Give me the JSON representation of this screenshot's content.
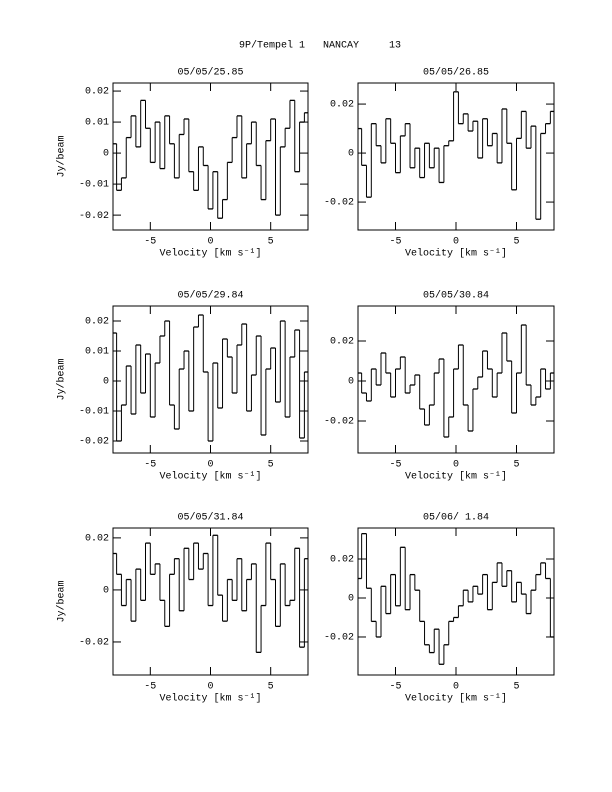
{
  "title": "9P/Tempel 1   NANCAY     13",
  "chart_data": [
    {
      "type": "step",
      "title": "05/05/25.85",
      "xlabel": "Velocity [km s⁻¹]",
      "ylabel": "Jy/beam",
      "xlim": [
        -8.1,
        8.1
      ],
      "xticks": [
        -5,
        0,
        5
      ],
      "ylim": [
        -0.0248,
        0.0226
      ],
      "yticks": [
        -0.02,
        -0.01,
        0,
        0.01,
        0.02
      ],
      "x": [
        -8,
        -7.6,
        -7.2,
        -6.8,
        -6.4,
        -6,
        -5.6,
        -5.2,
        -4.8,
        -4.4,
        -4,
        -3.6,
        -3.2,
        -2.8,
        -2.4,
        -2,
        -1.6,
        -1.2,
        -0.8,
        -0.4,
        0,
        0.4,
        0.8,
        1.2,
        1.6,
        2,
        2.4,
        2.8,
        3.2,
        3.6,
        4,
        4.4,
        4.8,
        5.2,
        5.6,
        6,
        6.4,
        6.8,
        7.2,
        7.6,
        8
      ],
      "values": [
        0.003,
        -0.012,
        -0.008,
        0.005,
        0.012,
        0.002,
        0.017,
        0.008,
        -0.003,
        0.01,
        -0.005,
        0.012,
        0.003,
        -0.008,
        0.006,
        0.011,
        -0.006,
        -0.012,
        0.002,
        -0.004,
        -0.018,
        -0.006,
        -0.021,
        -0.015,
        -0.003,
        0.005,
        0.012,
        -0.008,
        0.003,
        0.01,
        -0.004,
        -0.015,
        0.004,
        0.011,
        -0.02,
        0.002,
        0.008,
        0.017,
        -0.006,
        0.01,
        0.013
      ]
    },
    {
      "type": "step",
      "title": "05/05/26.85",
      "xlabel": "Velocity [km s⁻¹]",
      "xlim": [
        -8.1,
        8.1
      ],
      "xticks": [
        -5,
        0,
        5
      ],
      "ylim": [
        -0.0314,
        0.0286
      ],
      "yticks": [
        -0.02,
        0,
        0.02
      ],
      "x": [
        -8,
        -7.6,
        -7.2,
        -6.8,
        -6.4,
        -6,
        -5.6,
        -5.2,
        -4.8,
        -4.4,
        -4,
        -3.6,
        -3.2,
        -2.8,
        -2.4,
        -2,
        -1.6,
        -1.2,
        -0.8,
        -0.4,
        0,
        0.4,
        0.8,
        1.2,
        1.6,
        2,
        2.4,
        2.8,
        3.2,
        3.6,
        4,
        4.4,
        4.8,
        5.2,
        5.6,
        6,
        6.4,
        6.8,
        7.2,
        7.6,
        8
      ],
      "values": [
        0.01,
        -0.005,
        -0.018,
        0.012,
        0.003,
        -0.004,
        0.014,
        0.004,
        -0.008,
        0.007,
        0.012,
        -0.006,
        0.002,
        -0.01,
        0.004,
        -0.006,
        0.002,
        -0.012,
        0.003,
        0.005,
        0.025,
        0.012,
        0.016,
        0.009,
        0.013,
        -0.002,
        0.014,
        0.003,
        0.008,
        -0.004,
        0.018,
        0.004,
        -0.015,
        0.006,
        0.017,
        0.002,
        0.011,
        -0.027,
        0.008,
        0.012,
        0.017
      ]
    },
    {
      "type": "step",
      "title": "05/05/29.84",
      "xlabel": "Velocity [km s⁻¹]",
      "ylabel": "Jy/beam",
      "xlim": [
        -8.1,
        8.1
      ],
      "xticks": [
        -5,
        0,
        5
      ],
      "ylim": [
        -0.024,
        0.025
      ],
      "yticks": [
        -0.02,
        -0.01,
        0,
        0.01,
        0.02
      ],
      "x": [
        -8,
        -7.6,
        -7.2,
        -6.8,
        -6.4,
        -6,
        -5.6,
        -5.2,
        -4.8,
        -4.4,
        -4,
        -3.6,
        -3.2,
        -2.8,
        -2.4,
        -2,
        -1.6,
        -1.2,
        -0.8,
        -0.4,
        0,
        0.4,
        0.8,
        1.2,
        1.6,
        2,
        2.4,
        2.8,
        3.2,
        3.6,
        4,
        4.4,
        4.8,
        5.2,
        5.6,
        6,
        6.4,
        6.8,
        7.2,
        7.6,
        8
      ],
      "values": [
        0.016,
        -0.02,
        -0.008,
        0.005,
        -0.011,
        0.012,
        -0.004,
        0.009,
        -0.012,
        0.006,
        0.015,
        0.02,
        -0.008,
        -0.016,
        0.004,
        0.01,
        -0.01,
        0.018,
        0.022,
        0.003,
        -0.02,
        0.006,
        -0.009,
        0.014,
        0.008,
        -0.004,
        0.012,
        0.019,
        -0.01,
        0.002,
        0.015,
        -0.018,
        0.004,
        0.011,
        -0.007,
        0.02,
        -0.012,
        0.008,
        0.017,
        -0.019,
        0.003
      ]
    },
    {
      "type": "step",
      "title": "05/05/30.84",
      "xlabel": "Velocity [km s⁻¹]",
      "xlim": [
        -8.1,
        8.1
      ],
      "xticks": [
        -5,
        0,
        5
      ],
      "ylim": [
        -0.036,
        0.0375
      ],
      "yticks": [
        -0.02,
        0,
        0.02
      ],
      "x": [
        -8,
        -7.6,
        -7.2,
        -6.8,
        -6.4,
        -6,
        -5.6,
        -5.2,
        -4.8,
        -4.4,
        -4,
        -3.6,
        -3.2,
        -2.8,
        -2.4,
        -2,
        -1.6,
        -1.2,
        -0.8,
        -0.4,
        0,
        0.4,
        0.8,
        1.2,
        1.6,
        2,
        2.4,
        2.8,
        3.2,
        3.6,
        4,
        4.4,
        4.8,
        5.2,
        5.6,
        6,
        6.4,
        6.8,
        7.2,
        7.6,
        8
      ],
      "values": [
        0.004,
        -0.006,
        -0.01,
        0.006,
        -0.002,
        0.014,
        0.004,
        -0.008,
        0.006,
        0.012,
        -0.006,
        -0.002,
        0.003,
        -0.014,
        -0.022,
        -0.012,
        0.004,
        0.011,
        -0.028,
        -0.018,
        0.006,
        0.018,
        -0.012,
        -0.025,
        -0.004,
        0.002,
        0.015,
        0.006,
        -0.008,
        0.004,
        0.024,
        0.01,
        -0.016,
        0.004,
        0.028,
        -0.002,
        -0.012,
        -0.008,
        0.006,
        -0.004,
        0.004
      ]
    },
    {
      "type": "step",
      "title": "05/05/31.84",
      "xlabel": "Velocity [km s⁻¹]",
      "ylabel": "Jy/beam",
      "xlim": [
        -8.1,
        8.1
      ],
      "xticks": [
        -5,
        0,
        5
      ],
      "ylim": [
        -0.0327,
        0.0238
      ],
      "yticks": [
        -0.02,
        0,
        0.02
      ],
      "x": [
        -8,
        -7.6,
        -7.2,
        -6.8,
        -6.4,
        -6,
        -5.6,
        -5.2,
        -4.8,
        -4.4,
        -4,
        -3.6,
        -3.2,
        -2.8,
        -2.4,
        -2,
        -1.6,
        -1.2,
        -0.8,
        -0.4,
        0,
        0.4,
        0.8,
        1.2,
        1.6,
        2,
        2.4,
        2.8,
        3.2,
        3.6,
        4,
        4.4,
        4.8,
        5.2,
        5.6,
        6,
        6.4,
        6.8,
        7.2,
        7.6,
        8
      ],
      "values": [
        0.014,
        0.006,
        -0.006,
        0.004,
        -0.012,
        0.008,
        -0.004,
        0.018,
        0.006,
        0.01,
        -0.004,
        -0.014,
        0.006,
        0.012,
        -0.008,
        0.016,
        0.004,
        0.018,
        0.008,
        0.014,
        -0.006,
        0.021,
        -0.002,
        -0.012,
        0.004,
        -0.004,
        0.012,
        -0.008,
        0.004,
        0.01,
        -0.024,
        -0.006,
        0.018,
        0.004,
        -0.014,
        0.01,
        -0.006,
        -0.004,
        0.016,
        -0.022,
        0.012
      ]
    },
    {
      "type": "step",
      "title": "05/06/ 1.84",
      "xlabel": "Velocity [km s⁻¹]",
      "xlim": [
        -8.1,
        8.1
      ],
      "xticks": [
        -5,
        0,
        5
      ],
      "ylim": [
        -0.0395,
        0.0359
      ],
      "yticks": [
        -0.02,
        0,
        0.02
      ],
      "x": [
        -8,
        -7.6,
        -7.2,
        -6.8,
        -6.4,
        -6,
        -5.6,
        -5.2,
        -4.8,
        -4.4,
        -4,
        -3.6,
        -3.2,
        -2.8,
        -2.4,
        -2,
        -1.6,
        -1.2,
        -0.8,
        -0.4,
        0,
        0.4,
        0.8,
        1.2,
        1.6,
        2,
        2.4,
        2.8,
        3.2,
        3.6,
        4,
        4.4,
        4.8,
        5.2,
        5.6,
        6,
        6.4,
        6.8,
        7.2,
        7.6,
        8
      ],
      "values": [
        0.01,
        0.033,
        0.005,
        -0.012,
        -0.02,
        0.006,
        -0.008,
        0.012,
        -0.004,
        0.026,
        -0.006,
        0.012,
        0.004,
        -0.012,
        -0.024,
        -0.028,
        -0.016,
        -0.034,
        -0.024,
        -0.012,
        -0.01,
        -0.004,
        0.004,
        -0.002,
        0.006,
        0.002,
        0.012,
        -0.006,
        0.008,
        0.018,
        0.006,
        0.014,
        -0.002,
        0.008,
        0.002,
        -0.008,
        0.004,
        0.012,
        0.018,
        0.01,
        -0.02
      ]
    }
  ]
}
